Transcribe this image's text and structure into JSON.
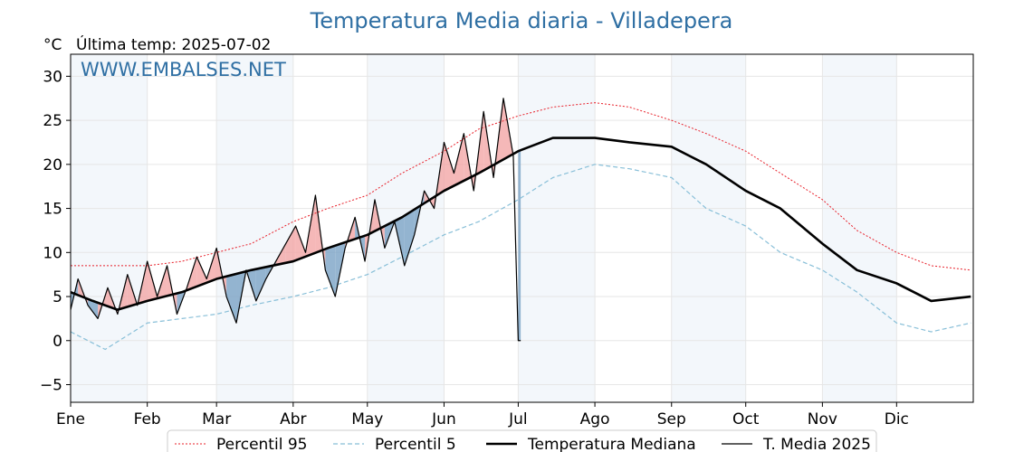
{
  "chart_data": {
    "type": "line",
    "title": "Temperatura Media diaria - Villadepera",
    "unit_label": "°C",
    "last_temp_label": "Última temp: 2025-07-02",
    "watermark": "WWW.EMBALSES.NET",
    "xlabel": "",
    "ylabel": "",
    "months": [
      "Ene",
      "Feb",
      "Mar",
      "Abr",
      "May",
      "Jun",
      "Jul",
      "Ago",
      "Sep",
      "Oct",
      "Nov",
      "Dic"
    ],
    "ylim": [
      -7,
      32.5
    ],
    "yticks": [
      -5,
      0,
      5,
      10,
      15,
      20,
      25,
      30
    ],
    "shaded_months": [
      "Ene",
      "Mar",
      "May",
      "Jul",
      "Sep",
      "Nov"
    ],
    "grid": true,
    "legend_position": "bottom-center",
    "series": [
      {
        "name": "Percentil 95",
        "color": "#e8202a",
        "style": "dotted",
        "x": [
          "2025-01-01",
          "2025-01-15",
          "2025-02-01",
          "2025-02-15",
          "2025-03-01",
          "2025-03-15",
          "2025-04-01",
          "2025-04-15",
          "2025-05-01",
          "2025-05-15",
          "2025-06-01",
          "2025-06-15",
          "2025-07-01",
          "2025-07-15",
          "2025-08-01",
          "2025-08-15",
          "2025-09-01",
          "2025-09-15",
          "2025-10-01",
          "2025-10-15",
          "2025-11-01",
          "2025-11-15",
          "2025-12-01",
          "2025-12-15",
          "2025-12-31"
        ],
        "y": [
          8.5,
          8.5,
          8.5,
          9,
          10,
          11,
          13.5,
          15,
          16.5,
          19,
          21.5,
          24,
          25.5,
          26.5,
          27,
          26.5,
          25,
          23.5,
          21.5,
          19,
          16,
          12.5,
          10,
          8.5,
          8
        ]
      },
      {
        "name": "Percentil 5",
        "color": "#88bfd8",
        "style": "dashed",
        "x": [
          "2025-01-01",
          "2025-01-15",
          "2025-02-01",
          "2025-02-15",
          "2025-03-01",
          "2025-03-15",
          "2025-04-01",
          "2025-04-15",
          "2025-05-01",
          "2025-05-15",
          "2025-06-01",
          "2025-06-15",
          "2025-07-01",
          "2025-07-15",
          "2025-08-01",
          "2025-08-15",
          "2025-09-01",
          "2025-09-15",
          "2025-10-01",
          "2025-10-15",
          "2025-11-01",
          "2025-11-15",
          "2025-12-01",
          "2025-12-15",
          "2025-12-31"
        ],
        "y": [
          1,
          -1,
          2,
          2.5,
          3,
          4,
          5,
          6,
          7.5,
          9.5,
          12,
          13.5,
          16,
          18.5,
          20,
          19.5,
          18.5,
          15,
          13,
          10,
          8,
          5.5,
          2,
          1,
          2
        ]
      },
      {
        "name": "Temperatura Mediana",
        "color": "#000000",
        "style": "thick",
        "x": [
          "2025-01-01",
          "2025-01-10",
          "2025-01-20",
          "2025-02-01",
          "2025-02-15",
          "2025-03-01",
          "2025-03-15",
          "2025-04-01",
          "2025-04-15",
          "2025-05-01",
          "2025-05-15",
          "2025-06-01",
          "2025-06-15",
          "2025-07-01",
          "2025-07-15",
          "2025-08-01",
          "2025-08-15",
          "2025-09-01",
          "2025-09-15",
          "2025-10-01",
          "2025-10-15",
          "2025-11-01",
          "2025-11-15",
          "2025-12-01",
          "2025-12-15",
          "2025-12-31"
        ],
        "y": [
          5.5,
          4.5,
          3.5,
          4.5,
          5.5,
          7,
          8,
          9,
          10.5,
          12,
          14,
          17,
          19,
          21.5,
          23,
          23,
          22.5,
          22,
          20,
          17,
          15,
          11,
          8,
          6.5,
          4.5,
          5
        ]
      },
      {
        "name": "T. Media 2025",
        "color": "#000000",
        "style": "thin",
        "x": [
          "2025-01-01",
          "2025-01-04",
          "2025-01-08",
          "2025-01-12",
          "2025-01-16",
          "2025-01-20",
          "2025-01-24",
          "2025-01-28",
          "2025-02-01",
          "2025-02-05",
          "2025-02-09",
          "2025-02-13",
          "2025-02-17",
          "2025-02-21",
          "2025-02-25",
          "2025-03-01",
          "2025-03-05",
          "2025-03-09",
          "2025-03-13",
          "2025-03-17",
          "2025-03-21",
          "2025-03-25",
          "2025-03-29",
          "2025-04-02",
          "2025-04-06",
          "2025-04-10",
          "2025-04-14",
          "2025-04-18",
          "2025-04-22",
          "2025-04-26",
          "2025-04-30",
          "2025-05-04",
          "2025-05-08",
          "2025-05-12",
          "2025-05-16",
          "2025-05-20",
          "2025-05-24",
          "2025-05-28",
          "2025-06-01",
          "2025-06-05",
          "2025-06-09",
          "2025-06-13",
          "2025-06-17",
          "2025-06-21",
          "2025-06-25",
          "2025-06-29",
          "2025-07-01",
          "2025-07-02"
        ],
        "y": [
          3.5,
          7,
          4,
          2.5,
          6,
          3,
          7.5,
          4,
          9,
          5,
          8.5,
          3,
          6,
          9.5,
          7,
          10.5,
          5,
          2,
          8,
          4.5,
          7,
          9,
          11,
          13,
          10,
          16.5,
          8,
          5,
          10.5,
          14,
          9,
          16,
          10.5,
          13.5,
          8.5,
          12,
          17,
          15,
          22.5,
          19,
          23.5,
          17,
          26,
          18.5,
          27.5,
          21,
          0,
          0
        ]
      }
    ]
  }
}
